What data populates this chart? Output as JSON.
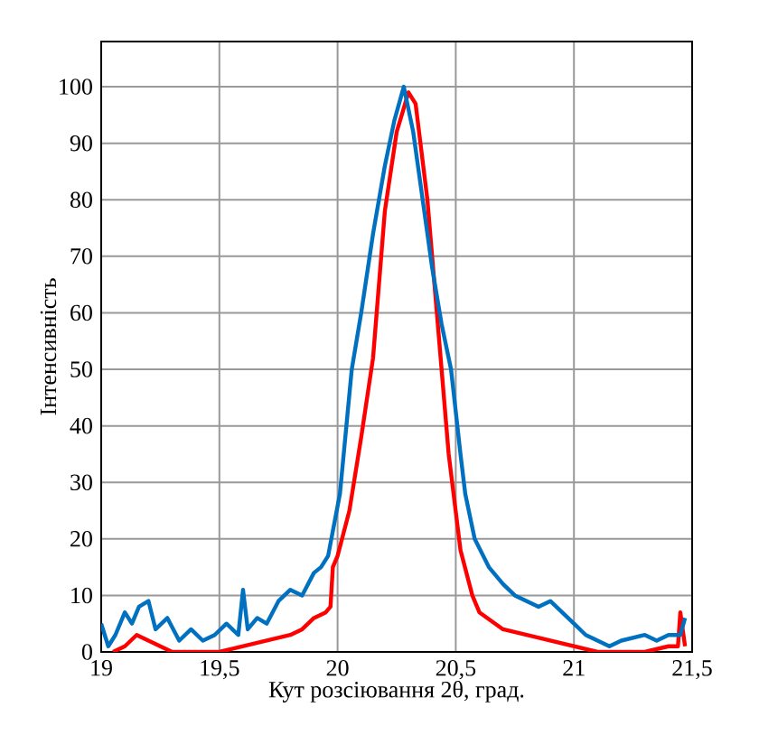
{
  "chart_data": {
    "type": "line",
    "xlabel": "Кут розсіювання 2θ, град.",
    "ylabel": "Інтенсивність",
    "xlim": [
      19,
      21.5
    ],
    "ylim": [
      0,
      108
    ],
    "xticks": [
      19,
      {
        "value": 19.5,
        "label": "19,5"
      },
      20,
      {
        "value": 20.5,
        "label": "20,5"
      },
      21,
      {
        "value": 21.5,
        "label": "21,5"
      }
    ],
    "yticks": [
      0,
      10,
      20,
      30,
      40,
      50,
      60,
      70,
      80,
      90,
      100
    ],
    "grid": true,
    "marker": "none",
    "line_style": "solid",
    "series": [
      {
        "color": "#ff0000",
        "x": [
          19.05,
          19.1,
          19.15,
          19.2,
          19.25,
          19.3,
          19.4,
          19.5,
          19.6,
          19.7,
          19.8,
          19.85,
          19.9,
          19.95,
          19.97,
          19.98,
          20.0,
          20.05,
          20.1,
          20.15,
          20.2,
          20.25,
          20.3,
          20.33,
          20.38,
          20.42,
          20.44,
          20.47,
          20.52,
          20.57,
          20.6,
          20.7,
          20.8,
          20.9,
          21.0,
          21.1,
          21.2,
          21.3,
          21.4,
          21.44,
          21.45,
          21.47
        ],
        "values": [
          0,
          1,
          3,
          2,
          1,
          0,
          0,
          0,
          1,
          2,
          3,
          4,
          6,
          7,
          8,
          15,
          17,
          25,
          38,
          52,
          78,
          92,
          99,
          97,
          80,
          60,
          50,
          35,
          18,
          10,
          7,
          4,
          3,
          2,
          1,
          0,
          0,
          0,
          1,
          1,
          7,
          1
        ]
      },
      {
        "color": "#0070c0",
        "x": [
          19.0,
          19.03,
          19.06,
          19.1,
          19.13,
          19.16,
          19.2,
          19.23,
          19.28,
          19.33,
          19.38,
          19.43,
          19.48,
          19.53,
          19.58,
          19.6,
          19.62,
          19.66,
          19.7,
          19.75,
          19.8,
          19.85,
          19.9,
          19.93,
          19.96,
          20.01,
          20.06,
          20.1,
          20.15,
          20.2,
          20.24,
          20.28,
          20.32,
          20.36,
          20.4,
          20.44,
          20.48,
          20.52,
          20.54,
          20.58,
          20.64,
          20.7,
          20.75,
          20.8,
          20.85,
          20.9,
          20.95,
          21.0,
          21.05,
          21.1,
          21.15,
          21.2,
          21.3,
          21.35,
          21.4,
          21.45,
          21.47
        ],
        "values": [
          5,
          1,
          3,
          7,
          5,
          8,
          9,
          4,
          6,
          2,
          4,
          2,
          3,
          5,
          3,
          11,
          4,
          6,
          5,
          9,
          11,
          10,
          14,
          15,
          17,
          28,
          50,
          60,
          74,
          86,
          94,
          100,
          92,
          80,
          68,
          58,
          50,
          35,
          28,
          20,
          15,
          12,
          10,
          9,
          8,
          9,
          7,
          5,
          3,
          2,
          1,
          2,
          3,
          2,
          3,
          3,
          6
        ]
      }
    ]
  }
}
